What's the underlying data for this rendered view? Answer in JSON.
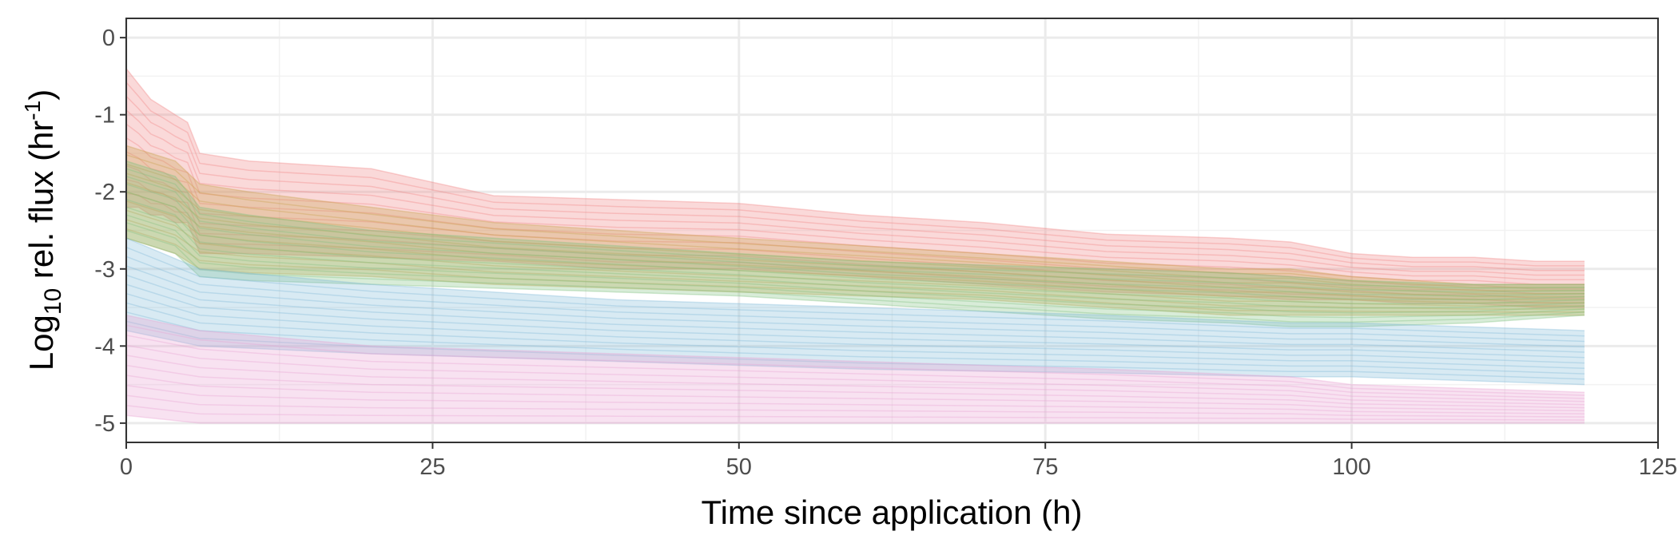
{
  "chart_data": {
    "type": "line",
    "xlabel": "Time since application (h)",
    "ylabel": {
      "prefix": "Log",
      "subscript": "10",
      "middle": " rel. flux ",
      "unit_base": "hr",
      "unit_exponent": "-1"
    },
    "xlim": [
      0,
      125
    ],
    "ylim": [
      -5.25,
      0.25
    ],
    "x_ticks": [
      0,
      25,
      50,
      75,
      100,
      125
    ],
    "x_tick_labels": [
      "0",
      "25",
      "50",
      "75",
      "100",
      "125"
    ],
    "y_ticks": [
      0,
      -1,
      -2,
      -3,
      -4,
      -5
    ],
    "y_tick_labels": [
      "0",
      "-1",
      "-2",
      "-3",
      "-4",
      "-5"
    ],
    "grid": true,
    "legend": "none",
    "series_colors": [
      "#f08080",
      "#7fbf7f",
      "#c8a04a",
      "#7fb8d8",
      "#e8a0d0"
    ],
    "bands": [
      {
        "color": "#f08080",
        "x": [
          0,
          1,
          2,
          3,
          4,
          5,
          6,
          10,
          20,
          30,
          40,
          50,
          60,
          70,
          80,
          90,
          95,
          100,
          105,
          110,
          115,
          119
        ],
        "upper": [
          -0.4,
          -0.6,
          -0.8,
          -0.9,
          -1.0,
          -1.1,
          -1.5,
          -1.6,
          -1.7,
          -2.05,
          -2.1,
          -2.15,
          -2.3,
          -2.4,
          -2.55,
          -2.6,
          -2.65,
          -2.8,
          -2.85,
          -2.85,
          -2.9,
          -2.9
        ],
        "lower": [
          -2.2,
          -2.2,
          -2.3,
          -2.3,
          -2.4,
          -2.4,
          -2.8,
          -2.8,
          -2.85,
          -2.9,
          -3.0,
          -3.0,
          -3.1,
          -3.2,
          -3.3,
          -3.35,
          -3.4,
          -3.4,
          -3.45,
          -3.45,
          -3.5,
          -3.5
        ]
      },
      {
        "color": "#c8a04a",
        "x": [
          0,
          2,
          4,
          6,
          10,
          20,
          30,
          40,
          50,
          60,
          70,
          80,
          90,
          95,
          100,
          110,
          119
        ],
        "upper": [
          -1.4,
          -1.5,
          -1.6,
          -1.9,
          -2.0,
          -2.2,
          -2.4,
          -2.5,
          -2.6,
          -2.7,
          -2.8,
          -2.9,
          -3.0,
          -3.0,
          -3.1,
          -3.2,
          -3.2
        ],
        "lower": [
          -2.6,
          -2.7,
          -2.8,
          -3.0,
          -3.05,
          -3.1,
          -3.2,
          -3.25,
          -3.3,
          -3.35,
          -3.4,
          -3.5,
          -3.6,
          -3.6,
          -3.6,
          -3.6,
          -3.6
        ]
      },
      {
        "color": "#7fbf7f",
        "x": [
          0,
          2,
          4,
          6,
          10,
          20,
          30,
          40,
          50,
          60,
          70,
          80,
          90,
          95,
          100,
          110,
          119
        ],
        "upper": [
          -1.6,
          -1.7,
          -1.8,
          -2.2,
          -2.3,
          -2.5,
          -2.6,
          -2.7,
          -2.8,
          -2.9,
          -2.95,
          -3.0,
          -3.05,
          -3.1,
          -3.15,
          -3.2,
          -3.2
        ],
        "lower": [
          -2.6,
          -2.7,
          -2.8,
          -3.1,
          -3.15,
          -3.2,
          -3.25,
          -3.3,
          -3.35,
          -3.45,
          -3.55,
          -3.65,
          -3.7,
          -3.75,
          -3.75,
          -3.7,
          -3.6
        ]
      },
      {
        "color": "#7fb8d8",
        "x": [
          0,
          6,
          20,
          40,
          60,
          80,
          95,
          100,
          119
        ],
        "upper": [
          -2.6,
          -3.0,
          -3.2,
          -3.4,
          -3.5,
          -3.6,
          -3.7,
          -3.7,
          -3.8
        ],
        "lower": [
          -3.8,
          -4.0,
          -4.1,
          -4.2,
          -4.3,
          -4.35,
          -4.4,
          -4.4,
          -4.5
        ]
      },
      {
        "color": "#e8a0d0",
        "x": [
          0,
          6,
          20,
          40,
          60,
          80,
          95,
          100,
          119
        ],
        "upper": [
          -3.6,
          -3.8,
          -4.0,
          -4.1,
          -4.2,
          -4.3,
          -4.4,
          -4.5,
          -4.6
        ],
        "lower": [
          -4.9,
          -5.0,
          -5.0,
          -5.0,
          -5.0,
          -5.0,
          -5.0,
          -5.0,
          -5.0
        ]
      }
    ]
  }
}
